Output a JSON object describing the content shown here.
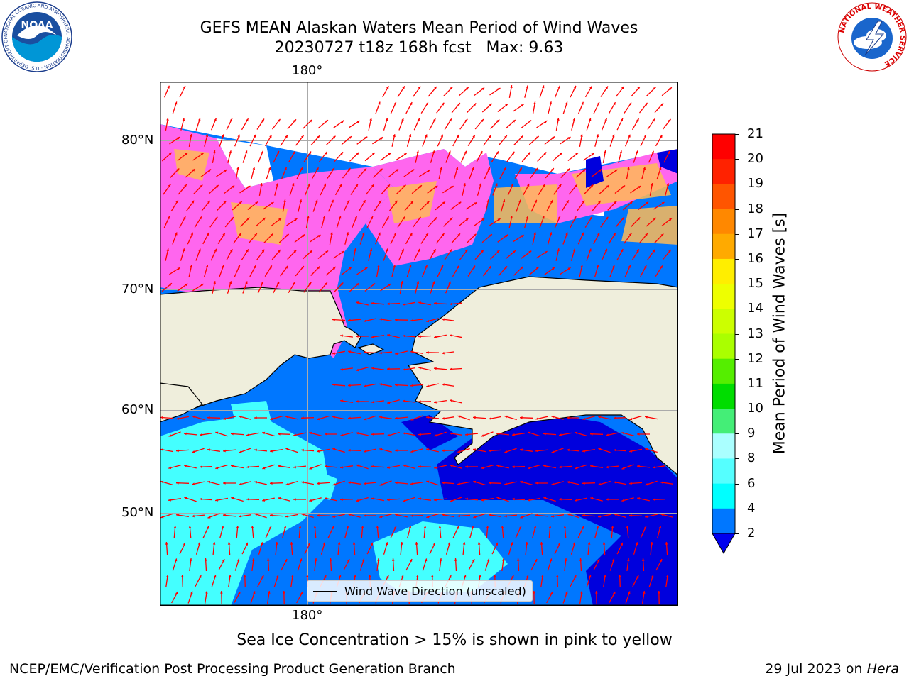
{
  "title": {
    "line1": "GEFS MEAN Alaskan Waters Mean Period of Wind Waves",
    "line2": "20230727 t18z 168h fcst   Max: 9.63"
  },
  "map": {
    "lon_labels": {
      "top": "180°",
      "bottom": "180°"
    },
    "lat_labels": [
      "80°N",
      "70°N",
      "60°N",
      "50°N"
    ],
    "legend": "Wind Wave Direction (unscaled)",
    "colors": {
      "land": "#efeedc",
      "ice_white": "#ffffff",
      "ice_pink": "#ff66ee",
      "ice_orange": "#ffbb55",
      "wave_2_4": "#0077ff",
      "wave_below_2": "#0000dd",
      "wave_4_6": "#00ffff",
      "wave_6_8": "#55ffff",
      "arrow": "#ff0000"
    }
  },
  "colorbar": {
    "label": "Mean Period of Wind Waves [s]",
    "ticks": [
      "21",
      "20",
      "19",
      "18",
      "17",
      "16",
      "15",
      "14",
      "13",
      "12",
      "11",
      "10",
      "9",
      "8",
      "6",
      "4",
      "2"
    ],
    "colors": [
      "#ff0000",
      "#ff2200",
      "#ff5500",
      "#ff8800",
      "#ffaa00",
      "#ffee00",
      "#eeff00",
      "#ccff00",
      "#aaff00",
      "#55ee00",
      "#00dd00",
      "#44ee77",
      "#aaffff",
      "#55ffff",
      "#00ffff",
      "#0077ff"
    ],
    "extend_color": "#0000ee"
  },
  "note": "Sea Ice Concentration > 15% is shown in pink to yellow",
  "footer": {
    "left": "NCEP/EMC/Verification Post Processing Product Generation Branch",
    "date": "29 Jul 2023 on",
    "machine": "Hera"
  },
  "logos": {
    "noaa": "NOAA",
    "noaa_ring_text": "NATIONAL OCEANIC AND ATMOSPHERIC ADMINISTRATION · U.S. DEPARTMENT OF COMMERCE",
    "nws_ring_text": "NATIONAL WEATHER SERVICE"
  }
}
